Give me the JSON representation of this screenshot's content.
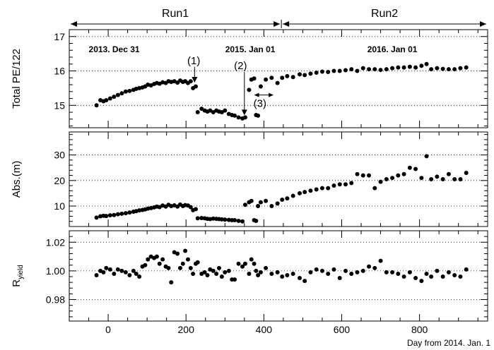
{
  "chart_data": {
    "type": "scatter",
    "xlabel": "Day from 2014. Jan. 1",
    "xlim": [
      -100,
      975
    ],
    "x_ticks": [
      "0",
      "200",
      "400",
      "600",
      "800"
    ],
    "runs": [
      {
        "label": "Run1",
        "x_range": [
          -100,
          445
        ]
      },
      {
        "label": "Run2",
        "x_range": [
          445,
          975
        ]
      }
    ],
    "date_markers": [
      {
        "label": "2013. Dec 31",
        "x": 0
      },
      {
        "label": "2015. Jan 01",
        "x": 365
      },
      {
        "label": "2016. Jan 01",
        "x": 730
      }
    ],
    "panels": [
      {
        "id": "pe",
        "ylabel": "Total PE/122",
        "ylim": [
          14.35,
          17.2
        ],
        "y_ticks": [
          "15",
          "16",
          "17"
        ],
        "grid_y": [
          15,
          16,
          17
        ],
        "annotations": [
          {
            "text": "(1)",
            "x": 220,
            "y": 16.2,
            "arrow_to": [
              222,
              15.6
            ]
          },
          {
            "text": "(2)",
            "x": 340,
            "y": 16.05,
            "arrow_to": [
              350,
              14.65
            ]
          },
          {
            "text": "(3)",
            "x": 390,
            "y": 14.95,
            "arrow_span": [
              375,
              425,
              15.3
            ]
          }
        ],
        "x": [
          -30,
          -20,
          -12,
          -5,
          5,
          15,
          25,
          35,
          45,
          55,
          65,
          72,
          80,
          88,
          95,
          102,
          110,
          118,
          125,
          132,
          140,
          148,
          155,
          162,
          170,
          178,
          185,
          192,
          198,
          205,
          212,
          218,
          225,
          230,
          240,
          248,
          255,
          262,
          270,
          278,
          285,
          292,
          300,
          310,
          318,
          325,
          335,
          345,
          352,
          362,
          368,
          375,
          380,
          385,
          392,
          405,
          420,
          435,
          447,
          460,
          475,
          492,
          505,
          520,
          535,
          550,
          565,
          580,
          595,
          610,
          625,
          640,
          655,
          670,
          685,
          700,
          715,
          730,
          745,
          760,
          775,
          790,
          805,
          818,
          830,
          845,
          860,
          875,
          890,
          905,
          920
        ],
        "y": [
          15.0,
          15.15,
          15.12,
          15.15,
          15.2,
          15.25,
          15.3,
          15.35,
          15.4,
          15.42,
          15.45,
          15.48,
          15.5,
          15.52,
          15.55,
          15.6,
          15.58,
          15.62,
          15.65,
          15.63,
          15.67,
          15.65,
          15.7,
          15.68,
          15.7,
          15.66,
          15.72,
          15.68,
          15.7,
          15.65,
          15.7,
          15.5,
          15.55,
          14.8,
          14.9,
          14.85,
          14.82,
          14.85,
          14.8,
          14.85,
          14.82,
          14.8,
          14.85,
          14.75,
          14.72,
          14.7,
          14.65,
          14.62,
          14.65,
          15.45,
          15.75,
          15.78,
          14.72,
          14.7,
          15.55,
          15.75,
          15.8,
          15.65,
          15.8,
          15.85,
          15.82,
          15.9,
          15.88,
          15.92,
          15.95,
          15.98,
          15.97,
          16.0,
          16.0,
          16.02,
          16.05,
          16.0,
          16.08,
          16.05,
          16.05,
          16.03,
          16.05,
          16.08,
          16.1,
          16.1,
          16.12,
          16.1,
          16.15,
          16.2,
          16.05,
          16.08,
          16.06,
          16.05,
          16.05,
          16.08,
          16.1
        ]
      },
      {
        "id": "abs",
        "ylabel": "Abs.(m)",
        "ylim": [
          2,
          39
        ],
        "y_ticks": [
          "10",
          "20",
          "30"
        ],
        "grid_y": [
          10,
          20,
          30
        ],
        "x": [
          -30,
          -20,
          -12,
          -5,
          5,
          15,
          25,
          35,
          45,
          55,
          65,
          72,
          80,
          88,
          95,
          102,
          110,
          118,
          125,
          132,
          140,
          148,
          155,
          162,
          170,
          178,
          185,
          192,
          198,
          205,
          212,
          218,
          225,
          230,
          240,
          248,
          255,
          262,
          270,
          278,
          285,
          292,
          300,
          310,
          318,
          325,
          335,
          345,
          352,
          362,
          368,
          375,
          380,
          385,
          392,
          405,
          420,
          435,
          447,
          460,
          475,
          492,
          505,
          520,
          535,
          550,
          565,
          580,
          595,
          610,
          625,
          640,
          655,
          670,
          685,
          700,
          715,
          730,
          745,
          760,
          775,
          790,
          805,
          818,
          830,
          845,
          860,
          875,
          890,
          905,
          920
        ],
        "y": [
          5.5,
          6.0,
          6.2,
          6.1,
          6.4,
          6.5,
          6.8,
          7.0,
          7.2,
          7.5,
          7.8,
          8.0,
          8.3,
          8.5,
          8.7,
          9.0,
          9.2,
          9.5,
          9.8,
          9.6,
          10.2,
          9.8,
          10.5,
          10.0,
          10.3,
          9.8,
          10.6,
          10.0,
          10.4,
          10.2,
          9.6,
          8.4,
          8.8,
          5.2,
          5.3,
          5.2,
          5.0,
          4.9,
          5.1,
          5.0,
          4.9,
          4.8,
          4.7,
          4.6,
          4.5,
          4.5,
          4.2,
          4.0,
          10.5,
          11.5,
          12.0,
          4.5,
          4.2,
          10.0,
          11.5,
          12.0,
          10.0,
          11.0,
          12.5,
          13.0,
          14.0,
          15.0,
          15.5,
          16.0,
          16.5,
          17.0,
          17.0,
          18.0,
          18.5,
          18.5,
          19.0,
          22.5,
          22.0,
          22.0,
          17.0,
          19.5,
          20.5,
          21.0,
          22.0,
          22.5,
          25.0,
          24.5,
          21.0,
          29.5,
          20.5,
          21.5,
          20.5,
          22.5,
          20.5,
          20.5,
          23.0
        ]
      },
      {
        "id": "ryield",
        "ylabel": "R",
        "ylabel_sub": "yield",
        "ylim": [
          0.965,
          1.028
        ],
        "y_ticks": [
          "0.98",
          "1.00",
          "1.02"
        ],
        "grid_y": [
          0.98,
          1.0,
          1.02
        ],
        "x": [
          -30,
          -20,
          -12,
          -5,
          5,
          15,
          25,
          35,
          45,
          55,
          65,
          72,
          80,
          88,
          95,
          102,
          110,
          118,
          125,
          132,
          140,
          148,
          155,
          162,
          170,
          178,
          185,
          192,
          198,
          205,
          212,
          218,
          225,
          230,
          240,
          248,
          255,
          262,
          270,
          278,
          285,
          292,
          300,
          310,
          318,
          325,
          335,
          345,
          352,
          362,
          368,
          375,
          380,
          385,
          392,
          405,
          420,
          435,
          447,
          460,
          475,
          492,
          505,
          520,
          535,
          550,
          565,
          580,
          595,
          610,
          625,
          640,
          655,
          670,
          685,
          700,
          715,
          730,
          745,
          760,
          775,
          790,
          805,
          818,
          830,
          845,
          860,
          875,
          890,
          905,
          920
        ],
        "y": [
          0.997,
          1.0,
          0.999,
          1.002,
          1.001,
          0.998,
          1.001,
          1.0,
          0.999,
          0.997,
          1.0,
          0.998,
          0.996,
          1.003,
          1.004,
          1.008,
          1.01,
          1.009,
          1.01,
          1.005,
          1.008,
          1.003,
          1.002,
          0.992,
          1.013,
          1.012,
          1.002,
          1.005,
          1.014,
          1.008,
          1.002,
          0.998,
          1.005,
          1.006,
          0.998,
          0.999,
          0.997,
          1.001,
          1.0,
          0.998,
          1.002,
          0.996,
          0.999,
          1.0,
          0.994,
          0.994,
          1.005,
          1.003,
          1.005,
          0.998,
          1.008,
          1.005,
          1.0,
          0.997,
          0.999,
          1.002,
          0.998,
          0.999,
          0.996,
          0.997,
          0.998,
          0.995,
          0.993,
          0.999,
          1.001,
          1.0,
          0.998,
          1.001,
          0.995,
          1.0,
          0.998,
          0.999,
          1.0,
          1.003,
          1.002,
          1.007,
          0.999,
          0.999,
          0.998,
          0.996,
          0.999,
          0.995,
          0.993,
          0.998,
          0.996,
          1.0,
          0.996,
          0.999,
          0.997,
          0.996,
          1.001
        ]
      }
    ]
  }
}
